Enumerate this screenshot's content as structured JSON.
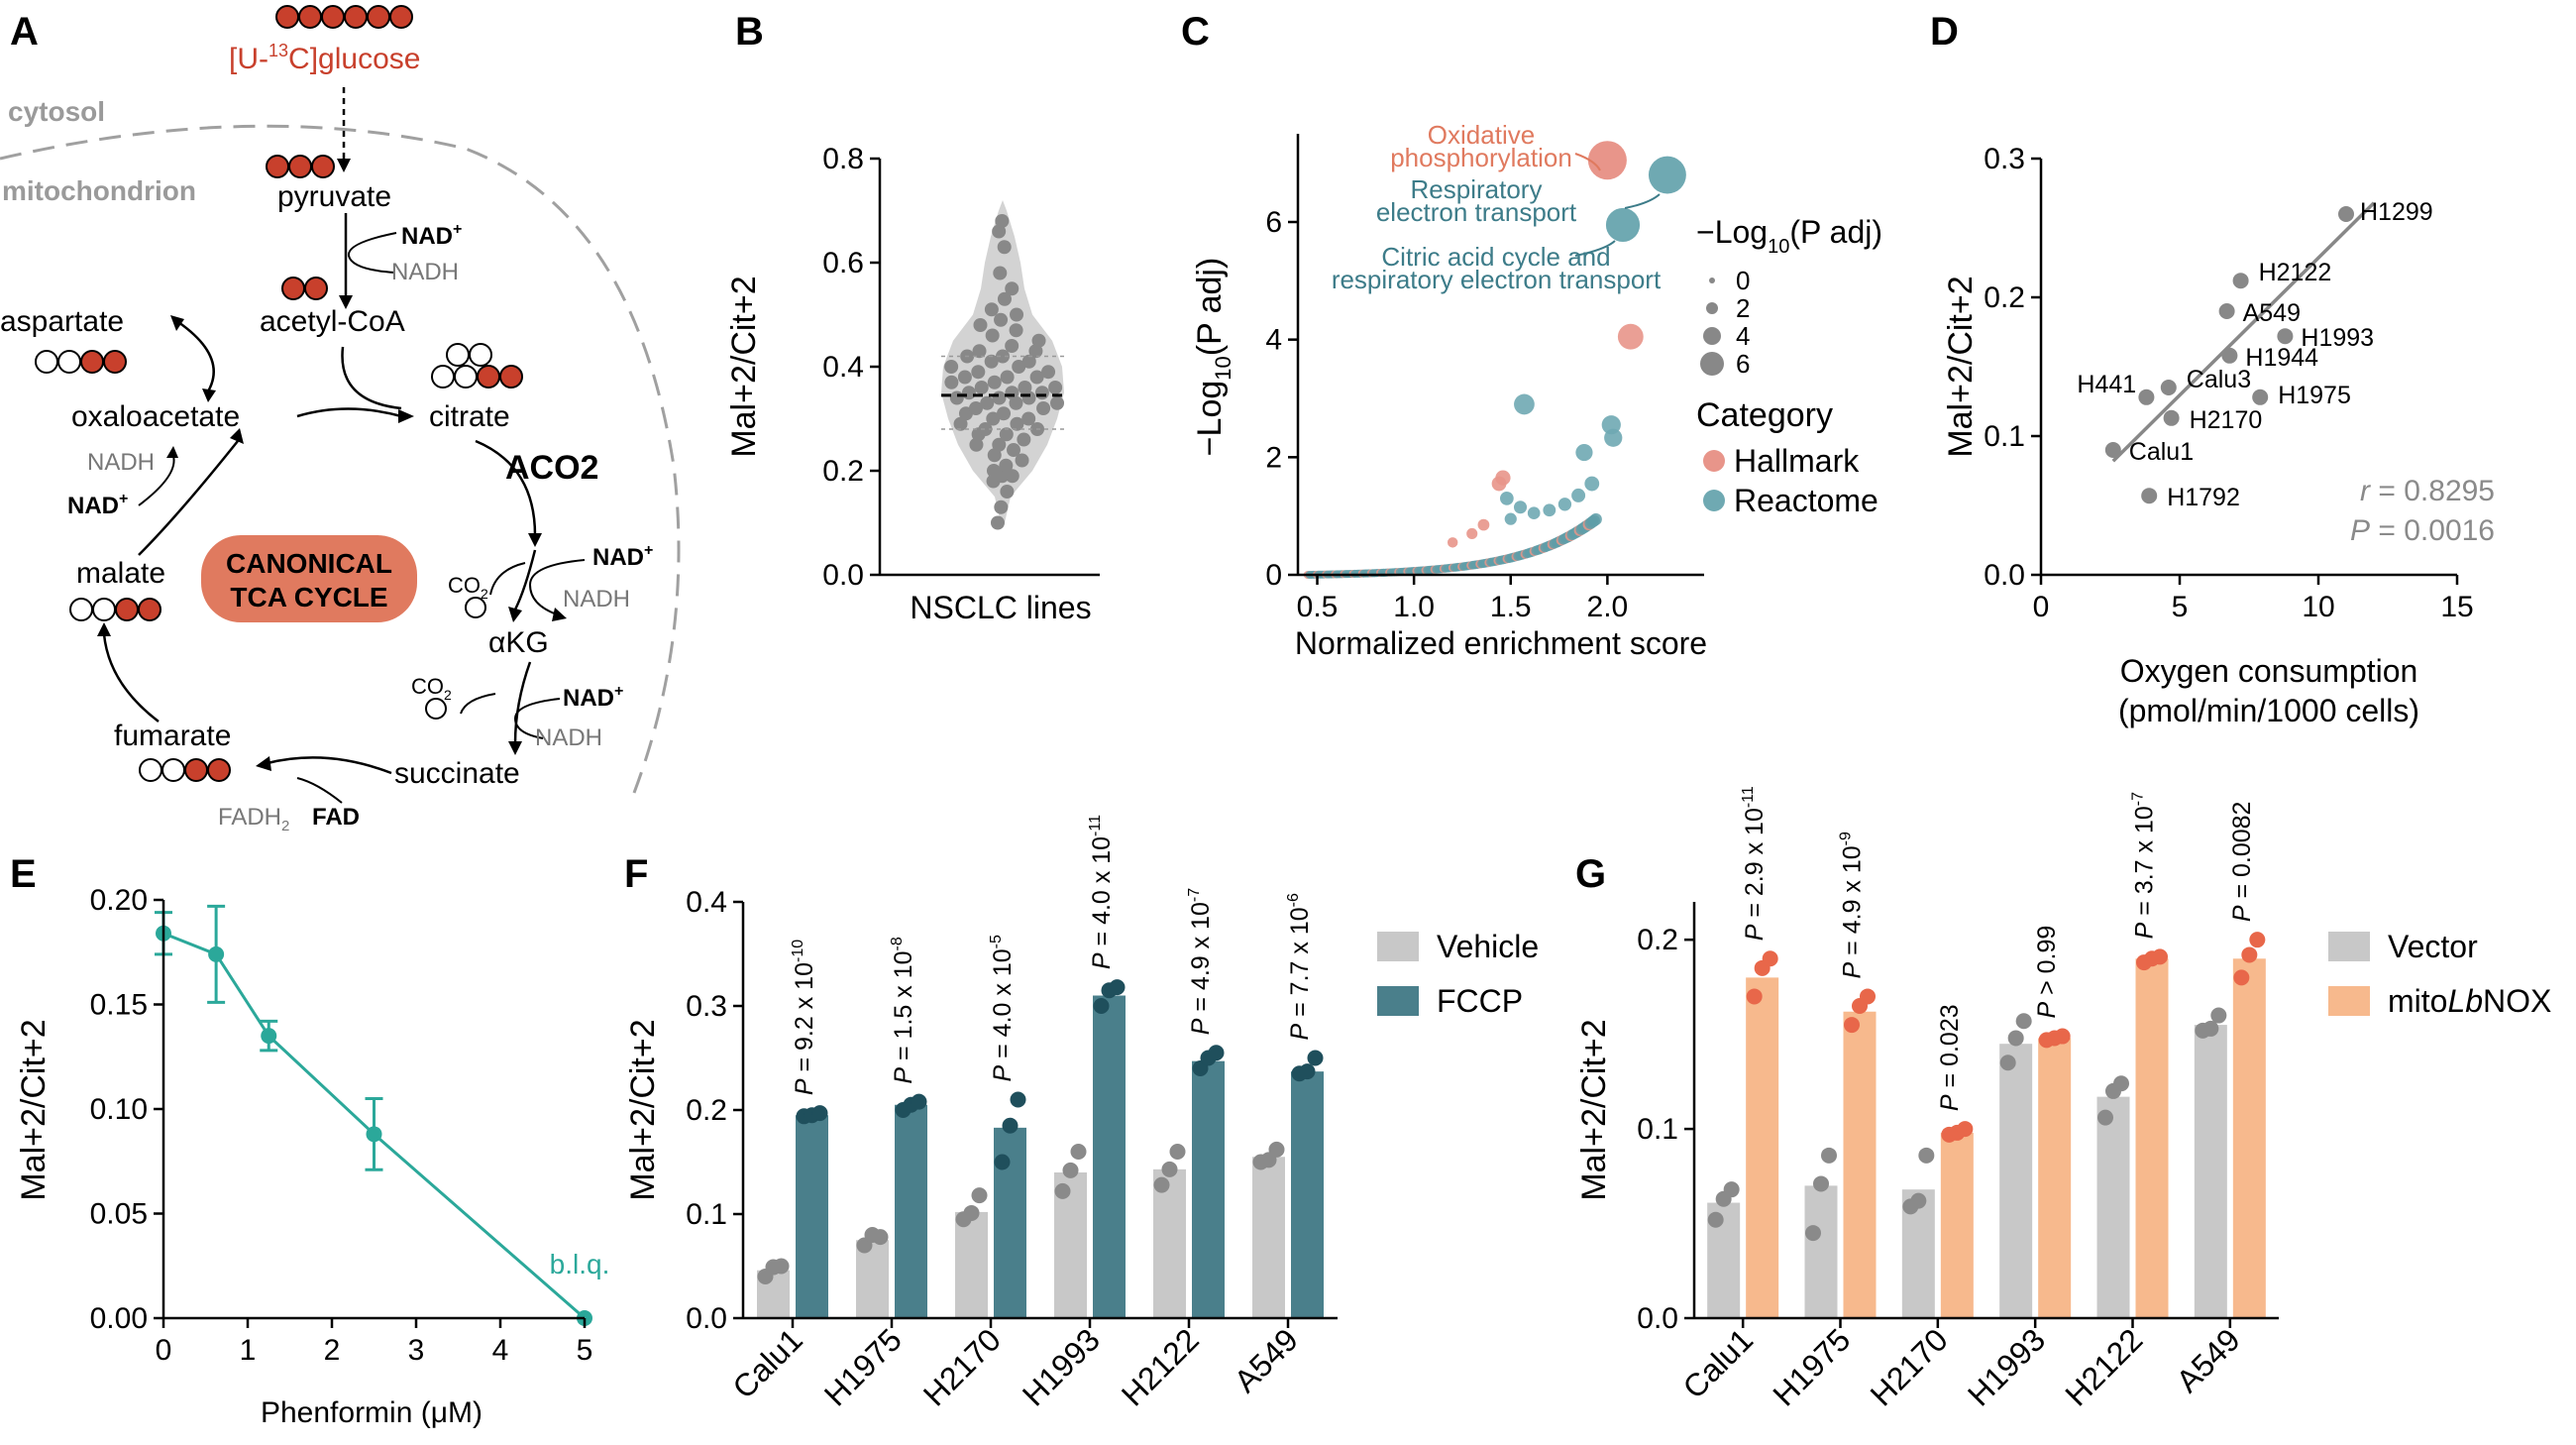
{
  "panel_letters": [
    "A",
    "B",
    "C",
    "D",
    "E",
    "F",
    "G"
  ],
  "colors": {
    "red": "#c8402c",
    "teal": "#3d7c89",
    "teal_light": "#6fb3be",
    "orange": "#f29d6b",
    "green": "#2ba89a",
    "grey": "#8a8a8a",
    "light_grey": "#c8c8c8",
    "salmon": "#e8826e"
  },
  "panelA": {
    "glucose_label": "[U-",
    "glucose_sup": "13",
    "glucose_rest": "C]glucose",
    "cytosol": "cytosol",
    "mitochondrion": "mitochondrion",
    "pyruvate": "pyruvate",
    "acetylcoa": "acetyl-CoA",
    "aspartate": "aspartate",
    "oxaloacetate": "oxaloacetate",
    "citrate": "citrate",
    "aco2": "ACO2",
    "malate": "malate",
    "akg": "αKG",
    "fumarate": "fumarate",
    "succinate": "succinate",
    "cycle_line1": "CANONICAL",
    "cycle_line2": "TCA CYCLE",
    "nad": "NAD",
    "nad_sup": "+",
    "nadh": "NADH",
    "co2": "CO",
    "co2_sub": "2",
    "fad": "FAD",
    "fadh2": "FADH",
    "fadh2_sub": "2"
  },
  "chart_data": [
    {
      "panel": "B",
      "type": "scatter",
      "title": "",
      "xlabel": "NSCLC lines",
      "ylabel": "Mal+2/Cit+2",
      "ylim": [
        0,
        0.8
      ],
      "yticks": [
        "0.0",
        "0.2",
        "0.4",
        "0.6",
        "0.8"
      ],
      "median": 0.345,
      "values": [
        0.1,
        0.13,
        0.16,
        0.18,
        0.19,
        0.19,
        0.2,
        0.21,
        0.22,
        0.23,
        0.24,
        0.25,
        0.25,
        0.26,
        0.27,
        0.27,
        0.28,
        0.28,
        0.29,
        0.29,
        0.3,
        0.3,
        0.31,
        0.31,
        0.32,
        0.32,
        0.33,
        0.33,
        0.33,
        0.34,
        0.34,
        0.34,
        0.35,
        0.35,
        0.35,
        0.36,
        0.36,
        0.36,
        0.37,
        0.37,
        0.38,
        0.38,
        0.38,
        0.39,
        0.39,
        0.4,
        0.4,
        0.41,
        0.41,
        0.42,
        0.42,
        0.43,
        0.43,
        0.44,
        0.45,
        0.46,
        0.47,
        0.48,
        0.49,
        0.5,
        0.51,
        0.53,
        0.55,
        0.58,
        0.63,
        0.66,
        0.68
      ]
    },
    {
      "panel": "C",
      "type": "scatter",
      "xlabel": "Normalized enrichment score",
      "ylabel": "−Log",
      "ylabel_sub": "10",
      "ylabel_rest": "(P adj)",
      "xlim": [
        0.4,
        2.5
      ],
      "ylim": [
        0,
        7.5
      ],
      "xticks": [
        "0.5",
        "1.0",
        "1.5",
        "2.0"
      ],
      "yticks": [
        "0",
        "2",
        "4",
        "6"
      ],
      "size_legend_title": "−Log",
      "size_legend_sub": "10",
      "size_legend_rest": "(P adj)",
      "size_legend": [
        "0",
        "2",
        "4",
        "6"
      ],
      "category_title": "Category",
      "categories": [
        "Hallmark",
        "Reactome"
      ],
      "annotations": [
        {
          "label": "Oxidative",
          "label2": "phosphorylation",
          "x": 2.0,
          "y": 7.05,
          "cat": "Hallmark"
        },
        {
          "label": "Respiratory",
          "label2": "electron transport",
          "x": 2.31,
          "y": 6.8,
          "cat": "Reactome"
        },
        {
          "label": "Citric acid cycle and",
          "label2": "respiratory electron transport",
          "x": 2.08,
          "y": 5.95,
          "cat": "Reactome"
        }
      ],
      "highlight_points": [
        {
          "x": 2.12,
          "y": 4.05,
          "cat": "Hallmark"
        },
        {
          "x": 1.57,
          "y": 2.9,
          "cat": "Reactome"
        },
        {
          "x": 2.02,
          "y": 2.55,
          "cat": "Reactome"
        },
        {
          "x": 2.03,
          "y": 2.33,
          "cat": "Reactome"
        },
        {
          "x": 1.88,
          "y": 2.08,
          "cat": "Reactome"
        },
        {
          "x": 1.46,
          "y": 1.65,
          "cat": "Hallmark"
        },
        {
          "x": 1.44,
          "y": 1.55,
          "cat": "Hallmark"
        },
        {
          "x": 1.48,
          "y": 1.3,
          "cat": "Reactome"
        },
        {
          "x": 1.55,
          "y": 1.15,
          "cat": "Reactome"
        },
        {
          "x": 1.62,
          "y": 1.05,
          "cat": "Reactome"
        },
        {
          "x": 1.7,
          "y": 1.1,
          "cat": "Reactome"
        },
        {
          "x": 1.78,
          "y": 1.2,
          "cat": "Reactome"
        },
        {
          "x": 1.85,
          "y": 1.35,
          "cat": "Reactome"
        },
        {
          "x": 1.92,
          "y": 1.55,
          "cat": "Reactome"
        },
        {
          "x": 1.36,
          "y": 0.85,
          "cat": "Hallmark"
        },
        {
          "x": 1.3,
          "y": 0.7,
          "cat": "Hallmark"
        },
        {
          "x": 1.2,
          "y": 0.55,
          "cat": "Hallmark"
        },
        {
          "x": 1.5,
          "y": 0.95,
          "cat": "Reactome"
        }
      ]
    },
    {
      "panel": "D",
      "type": "scatter",
      "xlabel": "Oxygen consumption",
      "xlabel2": "(pmol/min/1000 cells)",
      "ylabel": "Mal+2/Cit+2",
      "xlim": [
        0,
        15
      ],
      "ylim": [
        0,
        0.3
      ],
      "xticks": [
        "0",
        "5",
        "10",
        "15"
      ],
      "yticks": [
        "0.0",
        "0.1",
        "0.2",
        "0.3"
      ],
      "stat_r_label": "r",
      "stat_r": "= 0.8295",
      "stat_p_label": "P",
      "stat_p": "= 0.0016",
      "points": [
        {
          "name": "H1299",
          "x": 11.0,
          "y": 0.26
        },
        {
          "name": "H2122",
          "x": 7.2,
          "y": 0.212
        },
        {
          "name": "A549",
          "x": 6.7,
          "y": 0.19
        },
        {
          "name": "H1993",
          "x": 8.8,
          "y": 0.172
        },
        {
          "name": "H1944",
          "x": 6.8,
          "y": 0.158
        },
        {
          "name": "H441",
          "x": 3.8,
          "y": 0.128
        },
        {
          "name": "Calu3",
          "x": 4.6,
          "y": 0.135
        },
        {
          "name": "H1975",
          "x": 7.9,
          "y": 0.128
        },
        {
          "name": "H2170",
          "x": 4.7,
          "y": 0.113
        },
        {
          "name": "Calu1",
          "x": 2.6,
          "y": 0.09
        },
        {
          "name": "H1792",
          "x": 3.9,
          "y": 0.057
        }
      ],
      "fit": [
        [
          2.6,
          0.082
        ],
        [
          12.0,
          0.268
        ]
      ]
    },
    {
      "panel": "E",
      "type": "line",
      "xlabel": "Phenformin (μM)",
      "ylabel": "Mal+2/Cit+2",
      "xlim": [
        0,
        5
      ],
      "ylim": [
        0,
        0.2
      ],
      "xticks": [
        "0",
        "1",
        "2",
        "3",
        "4",
        "5"
      ],
      "yticks": [
        "0.00",
        "0.05",
        "0.10",
        "0.15",
        "0.20"
      ],
      "x": [
        0,
        0.625,
        1.25,
        2.5,
        5
      ],
      "y": [
        0.184,
        0.174,
        0.135,
        0.088,
        0.0
      ],
      "err": [
        0.01,
        0.023,
        0.007,
        0.017,
        0
      ],
      "annotation": "b.l.q."
    },
    {
      "panel": "F",
      "type": "bar",
      "ylabel": "Mal+2/Cit+2",
      "ylim": [
        0,
        0.4
      ],
      "yticks": [
        "0.0",
        "0.1",
        "0.2",
        "0.3",
        "0.4"
      ],
      "categories": [
        "Calu1",
        "H1975",
        "H2170",
        "H1993",
        "H2122",
        "A549"
      ],
      "series": [
        {
          "name": "Vehicle",
          "values": [
            0.046,
            0.075,
            0.102,
            0.14,
            0.143,
            0.155
          ],
          "points": [
            [
              0.04,
              0.049,
              0.05
            ],
            [
              0.07,
              0.08,
              0.078
            ],
            [
              0.095,
              0.101,
              0.118
            ],
            [
              0.122,
              0.142,
              0.16
            ],
            [
              0.128,
              0.143,
              0.16
            ],
            [
              0.15,
              0.152,
              0.162
            ]
          ]
        },
        {
          "name": "FCCP",
          "values": [
            0.195,
            0.205,
            0.183,
            0.31,
            0.247,
            0.237
          ],
          "points": [
            [
              0.194,
              0.195,
              0.197
            ],
            [
              0.2,
              0.205,
              0.208
            ],
            [
              0.15,
              0.185,
              0.21
            ],
            [
              0.3,
              0.315,
              0.318
            ],
            [
              0.24,
              0.25,
              0.255
            ],
            [
              0.235,
              0.237,
              0.25
            ]
          ]
        }
      ],
      "pvalue_prefix": "P",
      "pvalues": [
        {
          "m": "= 9.2 x 10",
          "e": "-10"
        },
        {
          "m": "= 1.5 x 10",
          "e": "-8"
        },
        {
          "m": "= 4.0 x 10",
          "e": "-5"
        },
        {
          "m": "= 4.0 x 10",
          "e": "-11"
        },
        {
          "m": "= 4.9 x 10",
          "e": "-7"
        },
        {
          "m": "= 7.7 x 10",
          "e": "-6"
        }
      ]
    },
    {
      "panel": "G",
      "type": "bar",
      "ylabel": "Mal+2/Cit+2",
      "ylim": [
        0,
        0.22
      ],
      "yticks": [
        "0.0",
        "0.1",
        "0.2"
      ],
      "categories": [
        "Calu1",
        "H1975",
        "H2170",
        "H1993",
        "H2122",
        "A549"
      ],
      "series": [
        {
          "name": "Vector",
          "values": [
            0.061,
            0.07,
            0.068,
            0.145,
            0.117,
            0.155
          ],
          "points": [
            [
              0.052,
              0.063,
              0.068
            ],
            [
              0.045,
              0.071,
              0.086
            ],
            [
              0.059,
              0.062,
              0.086
            ],
            [
              0.135,
              0.148,
              0.157
            ],
            [
              0.106,
              0.12,
              0.124
            ],
            [
              0.152,
              0.153,
              0.16
            ]
          ]
        },
        {
          "name": "mitoLbNOX",
          "name_pre": "mito",
          "name_ital": "Lb",
          "name_post": "NOX",
          "values": [
            0.18,
            0.162,
            0.098,
            0.148,
            0.19,
            0.19
          ],
          "points": [
            [
              0.17,
              0.185,
              0.19
            ],
            [
              0.155,
              0.165,
              0.17
            ],
            [
              0.097,
              0.098,
              0.1
            ],
            [
              0.147,
              0.148,
              0.149
            ],
            [
              0.188,
              0.19,
              0.191
            ],
            [
              0.18,
              0.192,
              0.2
            ]
          ]
        }
      ],
      "pvalue_prefix": "P",
      "pvalues": [
        {
          "m": "= 2.9 x 10",
          "e": "-11"
        },
        {
          "m": "= 4.9 x 10",
          "e": "-9"
        },
        {
          "m": "= 0.023",
          "e": ""
        },
        {
          "m": "> 0.99",
          "e": ""
        },
        {
          "m": "= 3.7 x 10",
          "e": "-7"
        },
        {
          "m": "= 0.0082",
          "e": ""
        }
      ]
    }
  ]
}
